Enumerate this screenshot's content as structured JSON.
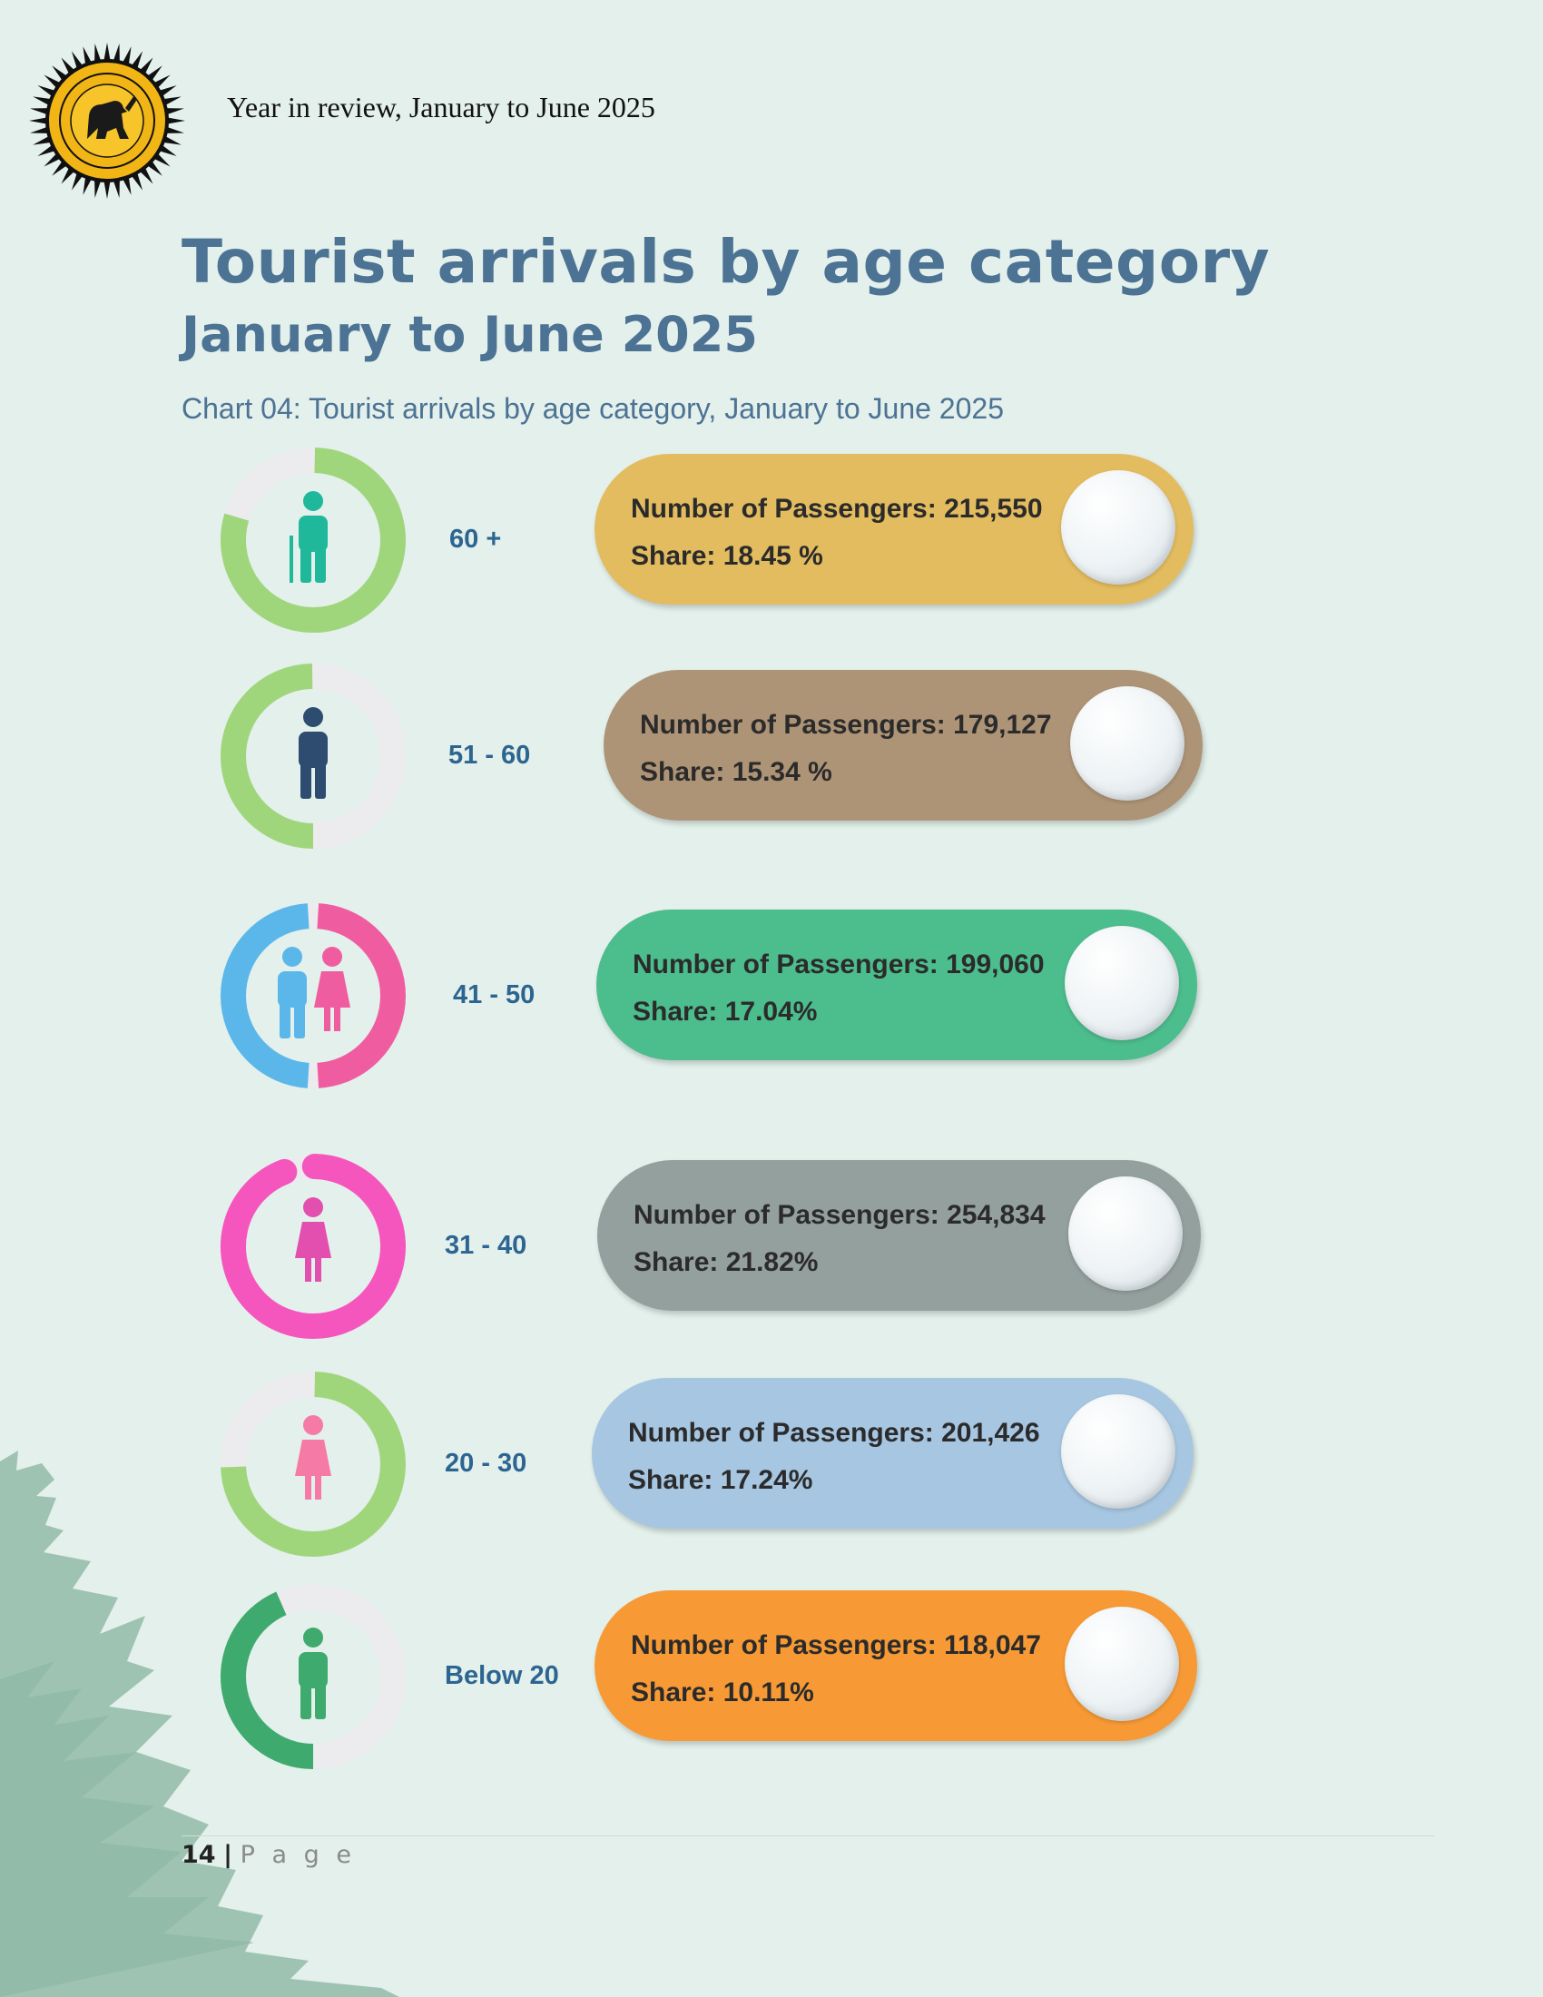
{
  "header": {
    "logo_name": "sri-lanka-tourism-development-authority-seal",
    "text": "Year in review, January to June 2025"
  },
  "title": {
    "line1": "Tourist arrivals by age category",
    "line2": "January to June 2025"
  },
  "chart_caption": "Chart 04: Tourist arrivals by age category, January to June 2025",
  "chart_data": {
    "type": "table",
    "title": "Chart 04: Tourist arrivals by age category, January to June 2025",
    "rows": [
      {
        "age": "60 +",
        "passengers_label": "Number of Passengers: 215,550",
        "share_label": "Share: 18.45 %",
        "passengers": 215550,
        "share": 18.45,
        "pill_color": "#e3bc5f",
        "ring_color": "#9fd67b",
        "icon_color": "#1fb89b",
        "icon": "elderly-person-icon"
      },
      {
        "age": "51 - 60",
        "passengers_label": "Number of Passengers: 179,127",
        "share_label": "Share: 15.34 %",
        "passengers": 179127,
        "share": 15.34,
        "pill_color": "#ae9476",
        "ring_color": "#9fd67b",
        "icon_color": "#2d4c70",
        "icon": "man-icon"
      },
      {
        "age": "41 - 50",
        "passengers_label": "Number of Passengers: 199,060",
        "share_label": "Share: 17.04%",
        "passengers": 199060,
        "share": 17.04,
        "pill_color": "#4cbd8d",
        "ring_color": "#5bb7ea",
        "ring_color_2": "#ef5da0",
        "icon_color": "#5bb7ea",
        "icon_color_2": "#ef5da0",
        "icon": "man-and-woman-icon"
      },
      {
        "age": "31 - 40",
        "passengers_label": "Number of Passengers: 254,834",
        "share_label": "Share: 21.82%",
        "passengers": 254834,
        "share": 21.82,
        "pill_color": "#94a09e",
        "ring_color": "#f556bd",
        "icon_color": "#e34fae",
        "icon": "woman-icon"
      },
      {
        "age": "20 - 30",
        "passengers_label": "Number of Passengers: 201,426",
        "share_label": "Share: 17.24%",
        "passengers": 201426,
        "share": 17.24,
        "pill_color": "#a6c6e1",
        "ring_color": "#9fd67b",
        "icon_color": "#f57ba6",
        "icon": "young-woman-icon"
      },
      {
        "age": "Below 20",
        "passengers_label": "Number of Passengers: 118,047",
        "share_label": "Share: 10.11%",
        "passengers": 118047,
        "share": 10.11,
        "pill_color": "#f79a35",
        "ring_color": "#3faa6e",
        "icon_color": "#3faa6e",
        "icon": "child-icon"
      }
    ]
  },
  "footer": {
    "page_number": "14",
    "separator": "|",
    "page_word": "P a g e"
  }
}
